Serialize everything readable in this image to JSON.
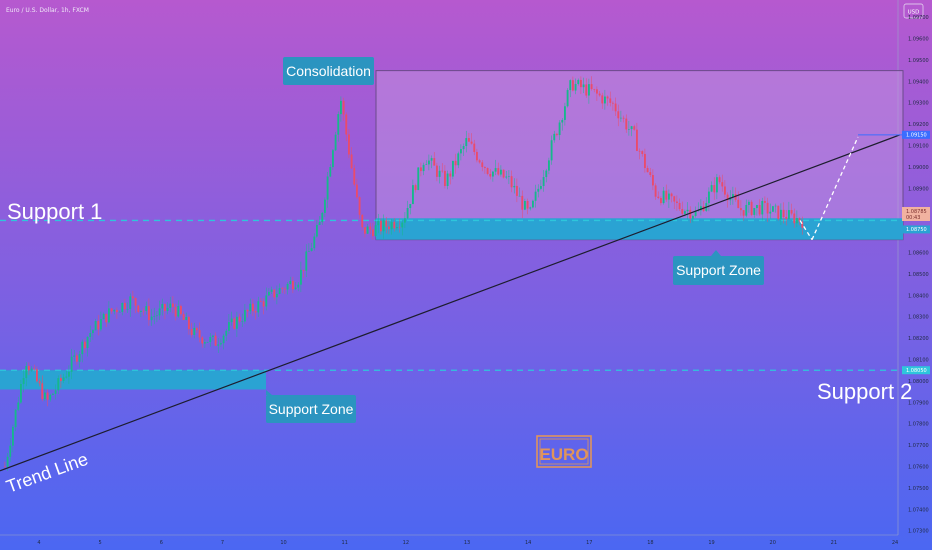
{
  "header": {
    "symbol": "Euro / U.S. Dollar, 1h, FXCM",
    "currency_button": "USD"
  },
  "colors": {
    "bg_top": "#b659cf",
    "bg_bottom": "#4b67f2",
    "up": "#16b88c",
    "down": "#ea4b6b",
    "zone": "#2aa3d3",
    "zone_label_bg": "#2b94c0",
    "consolidation_fill": "#c79ae0",
    "trend_line": "#1d1d2e",
    "support_line": "#2ec6dc",
    "euro_stamp": "#e0945b"
  },
  "annotations": {
    "consolidation": "Consolidation",
    "support_1": "Support 1",
    "support_2": "Support 2",
    "support_zone_lower": "Support Zone",
    "support_zone_upper": "Support Zone",
    "trend_line": "Trend Line",
    "stamp": "EURO"
  },
  "chart_data": {
    "type": "candlestick",
    "y_ticks": [
      "1.09700",
      "1.09600",
      "1.09500",
      "1.09400",
      "1.09300",
      "1.09200",
      "1.09100",
      "1.09000",
      "1.08900",
      "1.08800",
      "1.08700",
      "1.08600",
      "1.08500",
      "1.08400",
      "1.08300",
      "1.08200",
      "1.08100",
      "1.08000",
      "1.07900",
      "1.07800",
      "1.07700",
      "1.07600",
      "1.07500",
      "1.07400",
      "1.07300"
    ],
    "x_ticks": [
      "4",
      "5",
      "6",
      "7",
      "10",
      "11",
      "12",
      "13",
      "14",
      "17",
      "18",
      "19",
      "20",
      "21",
      "24"
    ],
    "price_tags": [
      {
        "value": "1.09150",
        "kind": "target"
      },
      {
        "value": "1.08785",
        "kind": "ask"
      },
      {
        "value": "00:43",
        "kind": "timer"
      },
      {
        "value": "1.08750",
        "kind": "bid"
      },
      {
        "value": "1.08050",
        "kind": "support"
      }
    ],
    "ylim": [
      1.0728,
      1.0978
    ],
    "support_1": 1.0875,
    "support_2": 1.0805,
    "consolidation_range": [
      1.0866,
      1.0945
    ],
    "upper_zone": [
      1.0866,
      1.0876
    ],
    "lower_zone": [
      1.0796,
      1.0805
    ],
    "trend_line": [
      [
        0,
        1.0758
      ],
      [
        1,
        1.0915
      ]
    ],
    "projection": [
      [
        1.0875,
        1.0866
      ],
      [
        1.0866,
        1.0914
      ]
    ],
    "close_path": [
      1.076,
      1.081,
      1.079,
      1.0805,
      1.0822,
      1.0832,
      1.0838,
      1.083,
      1.0835,
      1.0822,
      1.0818,
      1.0828,
      1.0835,
      1.0842,
      1.0848,
      1.0873,
      1.0932,
      1.087,
      1.0872,
      1.0876,
      1.0905,
      1.0893,
      1.0912,
      1.0899,
      1.0894,
      1.0877,
      1.0908,
      1.0939,
      1.0935,
      1.0929,
      1.0914,
      1.0888,
      1.0882,
      1.0878,
      1.0894,
      1.088,
      1.0881,
      1.0878,
      1.0875
    ]
  }
}
